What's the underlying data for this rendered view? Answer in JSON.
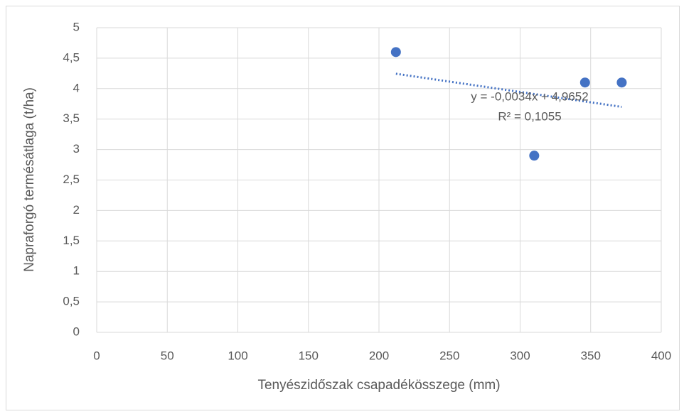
{
  "chart_data": {
    "type": "scatter",
    "x_label": "Tenyészidőszak csapadékösszege (mm)",
    "y_label": "Napraforgó termésátlaga (t/ha)",
    "series": [
      {
        "name": "Napraforgó",
        "color": "#4472c4",
        "x": [
          212,
          310,
          346,
          372
        ],
        "values": [
          4.6,
          2.9,
          4.1,
          4.1
        ]
      }
    ],
    "trendline": {
      "slope": -0.0034,
      "intercept": 4.9652,
      "color": "#4472c4",
      "equation": "y = -0,0034x + 4,9652",
      "r2": "R² = 0,1055"
    },
    "xlim": [
      0,
      400
    ],
    "xticks": [
      0,
      50,
      100,
      150,
      200,
      250,
      300,
      350,
      400
    ],
    "ylim": [
      0,
      5
    ],
    "yticks": [
      0,
      {
        "value": 0.5,
        "label": "0,5"
      },
      1,
      {
        "value": 1.5,
        "label": "1,5"
      },
      2,
      {
        "value": 2.5,
        "label": "2,5"
      },
      3,
      {
        "value": 3.5,
        "label": "3,5"
      },
      4,
      {
        "value": 4.5,
        "label": "4,5"
      },
      5
    ],
    "grid": true
  }
}
